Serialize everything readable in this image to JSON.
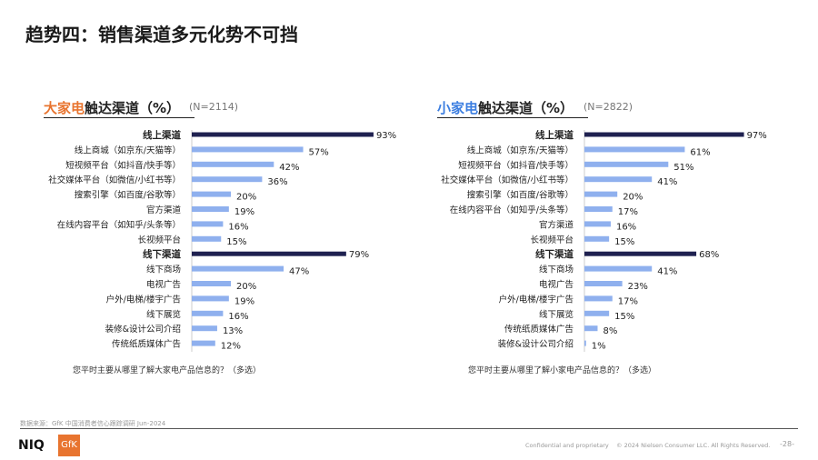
{
  "page": {
    "title": "趋势四：销售渠道多元化势不可挡",
    "source": "数据来源：GfK 中国消费者信心跟踪调研 Jun-2024",
    "confidential": "Confidential and proprietary",
    "copyright": "© 2024 Nielsen Consumer LLC. All Rights Reserved.",
    "page_number": "-28-",
    "logo_niq": "NIQ",
    "logo_gfk": "GfK"
  },
  "chart_data": [
    {
      "type": "bar",
      "orientation": "horizontal",
      "title_highlight": "大家电",
      "title_rest": "触达渠道（%）",
      "n": "(N=2114)",
      "question": "您平时主要从哪里了解大家电产品信息的？（多选）",
      "xlim": [
        0,
        100
      ],
      "categories": [
        "线上渠道",
        "线上商城（如京东/天猫等）",
        "短视频平台（如抖音/快手等）",
        "社交媒体平台（如微信/小红书等）",
        "搜索引擎（如百度/谷歌等）",
        "官方渠道",
        "在线内容平台（如知乎/头条等）",
        "长视频平台",
        "线下渠道",
        "线下商场",
        "电视广告",
        "户外/电梯/楼宇广告",
        "线下展览",
        "装修&设计公司介绍",
        "传统纸质媒体广告"
      ],
      "values": [
        93,
        57,
        42,
        36,
        20,
        19,
        16,
        15,
        79,
        47,
        20,
        19,
        16,
        13,
        12
      ],
      "group_header": [
        true,
        false,
        false,
        false,
        false,
        false,
        false,
        false,
        true,
        false,
        false,
        false,
        false,
        false,
        false
      ]
    },
    {
      "type": "bar",
      "orientation": "horizontal",
      "title_highlight": "小家电",
      "title_rest": "触达渠道（%）",
      "n": "(N=2822)",
      "question": "您平时主要从哪里了解小家电产品信息的？（多选）",
      "xlim": [
        0,
        100
      ],
      "categories": [
        "线上渠道",
        "线上商城（如京东/天猫等）",
        "短视频平台（如抖音/快手等）",
        "社交媒体平台（如微信/小红书等）",
        "搜索引擎（如百度/谷歌等）",
        "在线内容平台（如知乎/头条等）",
        "官方渠道",
        "长视频平台",
        "线下渠道",
        "线下商场",
        "电视广告",
        "户外/电梯/楼宇广告",
        "线下展览",
        "传统纸质媒体广告",
        "装修&设计公司介绍"
      ],
      "values": [
        97,
        61,
        51,
        41,
        20,
        17,
        16,
        15,
        68,
        41,
        23,
        17,
        15,
        8,
        1
      ],
      "group_header": [
        true,
        false,
        false,
        false,
        false,
        false,
        false,
        false,
        true,
        false,
        false,
        false,
        false,
        false,
        false
      ]
    }
  ],
  "colors": {
    "header": "#1f2150",
    "bar": "#8fb0ee"
  }
}
